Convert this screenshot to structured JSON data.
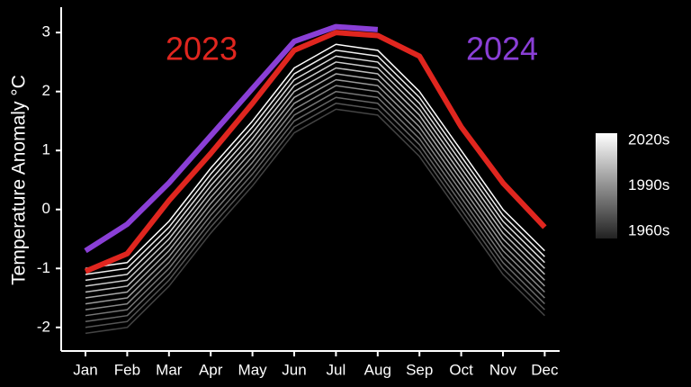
{
  "chart_data": {
    "type": "line",
    "y_label": "Temperature Anomaly °C",
    "categories": [
      "Jan",
      "Feb",
      "Mar",
      "Apr",
      "May",
      "Jun",
      "Jul",
      "Aug",
      "Sep",
      "Oct",
      "Nov",
      "Dec"
    ],
    "ylim": [
      -2.4,
      3.43
    ],
    "yticks": [
      -2,
      -1,
      0,
      1,
      2,
      3
    ],
    "background_color": "#000000",
    "axis_color": "#ffffff",
    "background_series": [
      {
        "color": "#444444",
        "values": [
          -2.1,
          -2.0,
          -1.3,
          -0.4,
          0.4,
          1.3,
          1.7,
          1.6,
          0.9,
          -0.1,
          -1.1,
          -1.8
        ]
      },
      {
        "color": "#555555",
        "values": [
          -2.0,
          -1.9,
          -1.2,
          -0.3,
          0.5,
          1.4,
          1.8,
          1.7,
          1.0,
          0.0,
          -1.0,
          -1.7
        ]
      },
      {
        "color": "#666666",
        "values": [
          -1.9,
          -1.8,
          -1.1,
          -0.2,
          0.6,
          1.5,
          1.9,
          1.8,
          1.1,
          0.1,
          -0.9,
          -1.6
        ]
      },
      {
        "color": "#777777",
        "values": [
          -1.8,
          -1.7,
          -1.0,
          -0.1,
          0.7,
          1.6,
          2.0,
          1.9,
          1.2,
          0.2,
          -0.8,
          -1.5
        ]
      },
      {
        "color": "#888888",
        "values": [
          -1.7,
          -1.6,
          -0.9,
          0.0,
          0.8,
          1.7,
          2.1,
          2.0,
          1.3,
          0.3,
          -0.7,
          -1.4
        ]
      },
      {
        "color": "#999999",
        "values": [
          -1.6,
          -1.5,
          -0.8,
          0.1,
          0.9,
          1.8,
          2.2,
          2.1,
          1.4,
          0.4,
          -0.6,
          -1.3
        ]
      },
      {
        "color": "#aaaaaa",
        "values": [
          -1.5,
          -1.4,
          -0.7,
          0.2,
          1.0,
          1.9,
          2.3,
          2.2,
          1.5,
          0.5,
          -0.5,
          -1.2
        ]
      },
      {
        "color": "#bbbbbb",
        "values": [
          -1.4,
          -1.3,
          -0.6,
          0.3,
          1.1,
          2.0,
          2.4,
          2.3,
          1.6,
          0.6,
          -0.4,
          -1.1
        ]
      },
      {
        "color": "#cccccc",
        "values": [
          -1.3,
          -1.2,
          -0.5,
          0.4,
          1.2,
          2.1,
          2.5,
          2.4,
          1.7,
          0.7,
          -0.3,
          -1.0
        ]
      },
      {
        "color": "#dddddd",
        "values": [
          -1.2,
          -1.1,
          -0.4,
          0.5,
          1.3,
          2.2,
          2.6,
          2.5,
          1.8,
          0.8,
          -0.2,
          -0.9
        ]
      },
      {
        "color": "#eeeeee",
        "values": [
          -1.1,
          -1.0,
          -0.3,
          0.6,
          1.4,
          2.3,
          2.7,
          2.6,
          1.9,
          0.9,
          -0.1,
          -0.8
        ]
      },
      {
        "color": "#ffffff",
        "values": [
          -1.0,
          -0.9,
          -0.2,
          0.7,
          1.5,
          2.4,
          2.8,
          2.7,
          2.0,
          1.0,
          0.0,
          -0.7
        ]
      }
    ],
    "series": [
      {
        "name": "2023",
        "color": "#e0261f",
        "values": [
          -1.05,
          -0.75,
          0.15,
          0.95,
          1.8,
          2.7,
          3.0,
          2.95,
          2.6,
          1.4,
          0.45,
          -0.3
        ]
      },
      {
        "name": "2024",
        "color": "#8a3fd6",
        "values": [
          -0.7,
          -0.25,
          0.45,
          1.25,
          2.05,
          2.85,
          3.1,
          3.05,
          null,
          null,
          null,
          null
        ]
      }
    ],
    "colorbar": {
      "labels": [
        "2020s",
        "1990s",
        "1960s"
      ],
      "colors": [
        "#ffffff",
        "#222222"
      ]
    }
  }
}
